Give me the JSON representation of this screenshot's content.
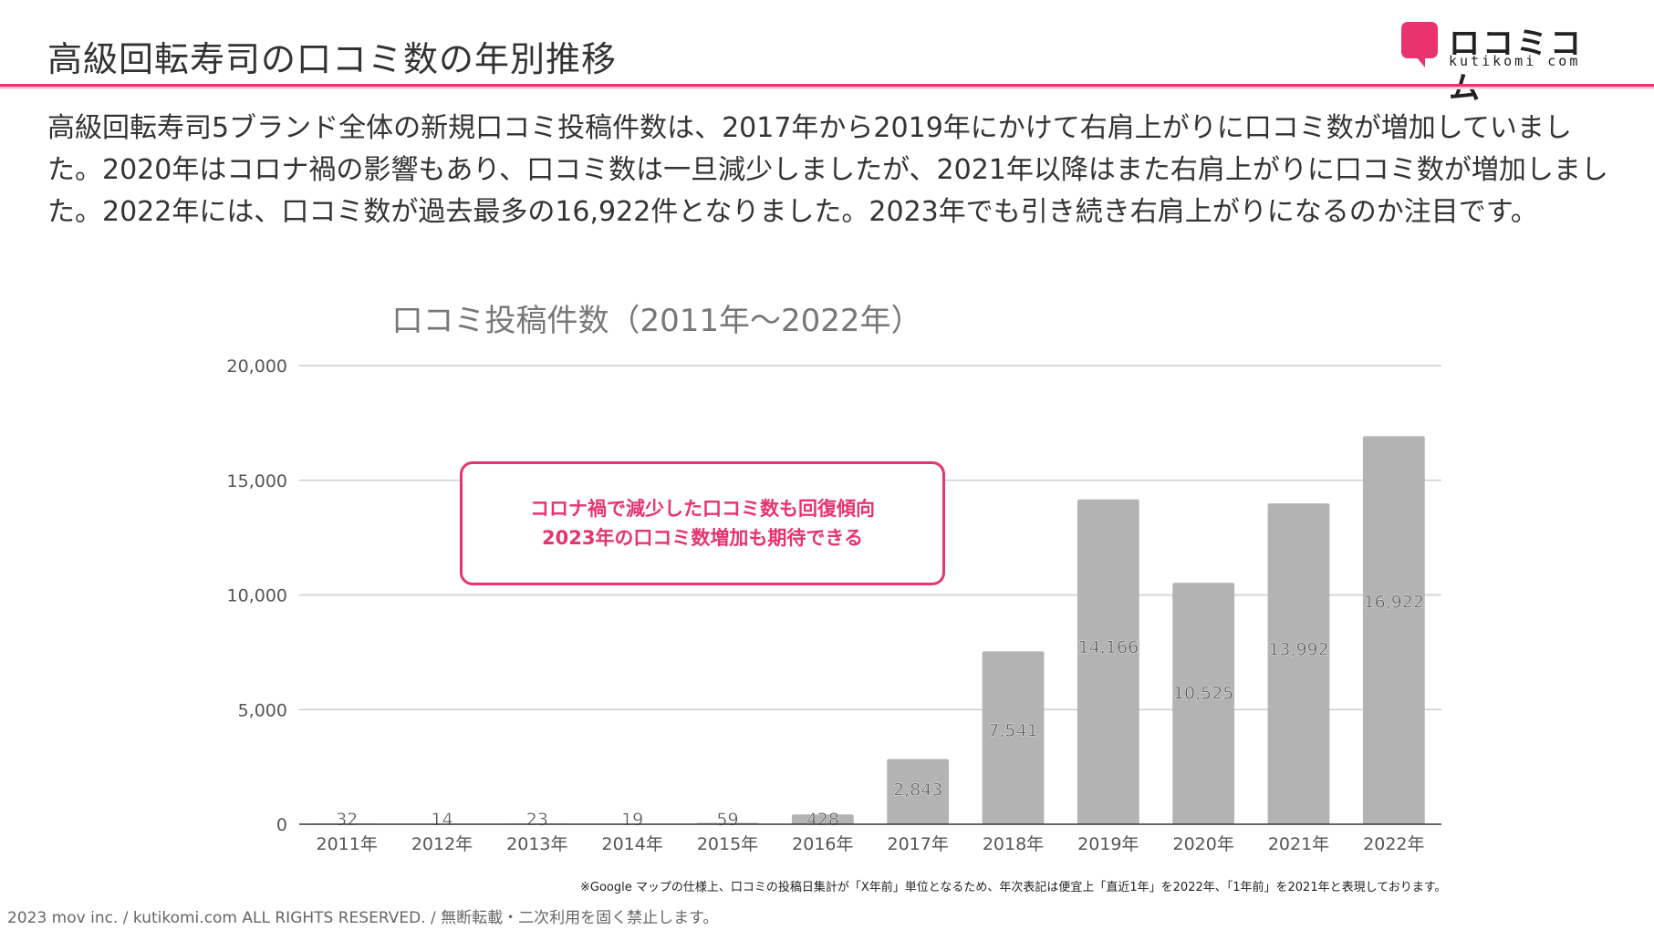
{
  "header": {
    "title": "高級回転寿司の口コミ数の年別推移",
    "logo_text": "ロコミコム",
    "logo_sub": "kutikomi com"
  },
  "description": "高級回転寿司5ブランド全体の新規口コミ投稿件数は、2017年から2019年にかけて右肩上がりに口コミ数が増加していました。2020年はコロナ禍の影響もあり、口コミ数は一旦減少しましたが、2021年以降はまた右肩上がりに口コミ数が増加しました。2022年には、口コミ数が過去最多の16,922件となりました。2023年でも引き続き右肩上がりになるのか注目です。",
  "callout": {
    "line1": "コロナ禍で減少した口コミ数も回復傾向",
    "line2": "2023年の口コミ数増加も期待できる"
  },
  "chart_data": {
    "type": "bar",
    "title": "口コミ投稿件数（2011年〜2022年）",
    "categories": [
      "2011年",
      "2012年",
      "2013年",
      "2014年",
      "2015年",
      "2016年",
      "2017年",
      "2018年",
      "2019年",
      "2020年",
      "2021年",
      "2022年"
    ],
    "values": [
      32,
      14,
      23,
      19,
      59,
      428,
      2843,
      7541,
      14166,
      10525,
      13992,
      16922
    ],
    "value_labels": [
      "32",
      "14",
      "23",
      "19",
      "59",
      "428",
      "2,843",
      "7,541",
      "14,166",
      "10,525",
      "13,992",
      "16,922"
    ],
    "ylim": [
      0,
      20000
    ],
    "yticks": [
      0,
      5000,
      10000,
      15000,
      20000
    ],
    "ytick_labels": [
      "0",
      "5,000",
      "10,000",
      "15,000",
      "20,000"
    ],
    "grid": true,
    "bar_color": "#b3b3b3"
  },
  "footnote": "※Google マップの仕様上、口コミの投稿日集計が「X年前」単位となるため、年次表記は便宜上「直近1年」を2022年、「1年前」を2021年と表現しております。",
  "copyright": "2023 mov inc. / kutikomi.com ALL RIGHTS RESERVED. / 無断転載・二次利用を固く禁止します。",
  "colors": {
    "accent": "#e8336f",
    "bar": "#b3b3b3",
    "grid": "#cccccc"
  }
}
